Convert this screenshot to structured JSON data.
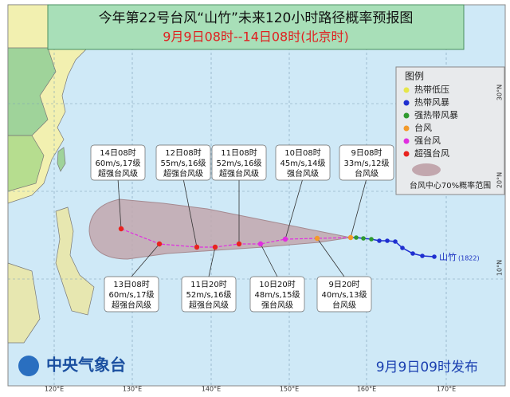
{
  "header": {
    "title": "今年第22号台风“山竹”未来120小时路径概率预报图",
    "subtitle": "9月9日08时--14日08时(北京时)"
  },
  "legend": {
    "title": "图例",
    "items": [
      {
        "label": "热带低压",
        "color": "#e6e64a"
      },
      {
        "label": "热带风暴",
        "color": "#1f2fd0"
      },
      {
        "label": "强热带风暴",
        "color": "#2f9a2f"
      },
      {
        "label": "台风",
        "color": "#f39a2a"
      },
      {
        "label": "强台风",
        "color": "#e02ee0"
      },
      {
        "label": "超强台风",
        "color": "#e8231f"
      }
    ],
    "cone_label": "台风中心70%概率范围"
  },
  "forecast_points": [
    {
      "time": "14日08时",
      "wind": "60m/s,17级",
      "category": "超强台风级"
    },
    {
      "time": "12日08时",
      "wind": "55m/s,16级",
      "category": "超强台风级"
    },
    {
      "time": "11日08时",
      "wind": "52m/s,16级",
      "category": "超强台风级"
    },
    {
      "time": "10日08时",
      "wind": "45m/s,14级",
      "category": "强台风级"
    },
    {
      "time": "9日08时",
      "wind": "33m/s,12级",
      "category": "台风级"
    },
    {
      "time": "13日08时",
      "wind": "60m/s,17级",
      "category": "超强台风级"
    },
    {
      "time": "11日20时",
      "wind": "52m/s,16级",
      "category": "超强台风级"
    },
    {
      "time": "10日20时",
      "wind": "48m/s,15级",
      "category": "强台风级"
    },
    {
      "time": "9日20时",
      "wind": "40m/s,13级",
      "category": "台风级"
    }
  ],
  "typhoon": {
    "name": "山竹",
    "code": "(1822)"
  },
  "axes": {
    "lon": [
      "120°E",
      "130°E",
      "140°E",
      "150°E",
      "160°E",
      "170°E"
    ],
    "lat": [
      "10°N",
      "20°N",
      "30°N"
    ]
  },
  "footer": {
    "agency": "中央气象台",
    "issued": "9月9日09时发布"
  }
}
